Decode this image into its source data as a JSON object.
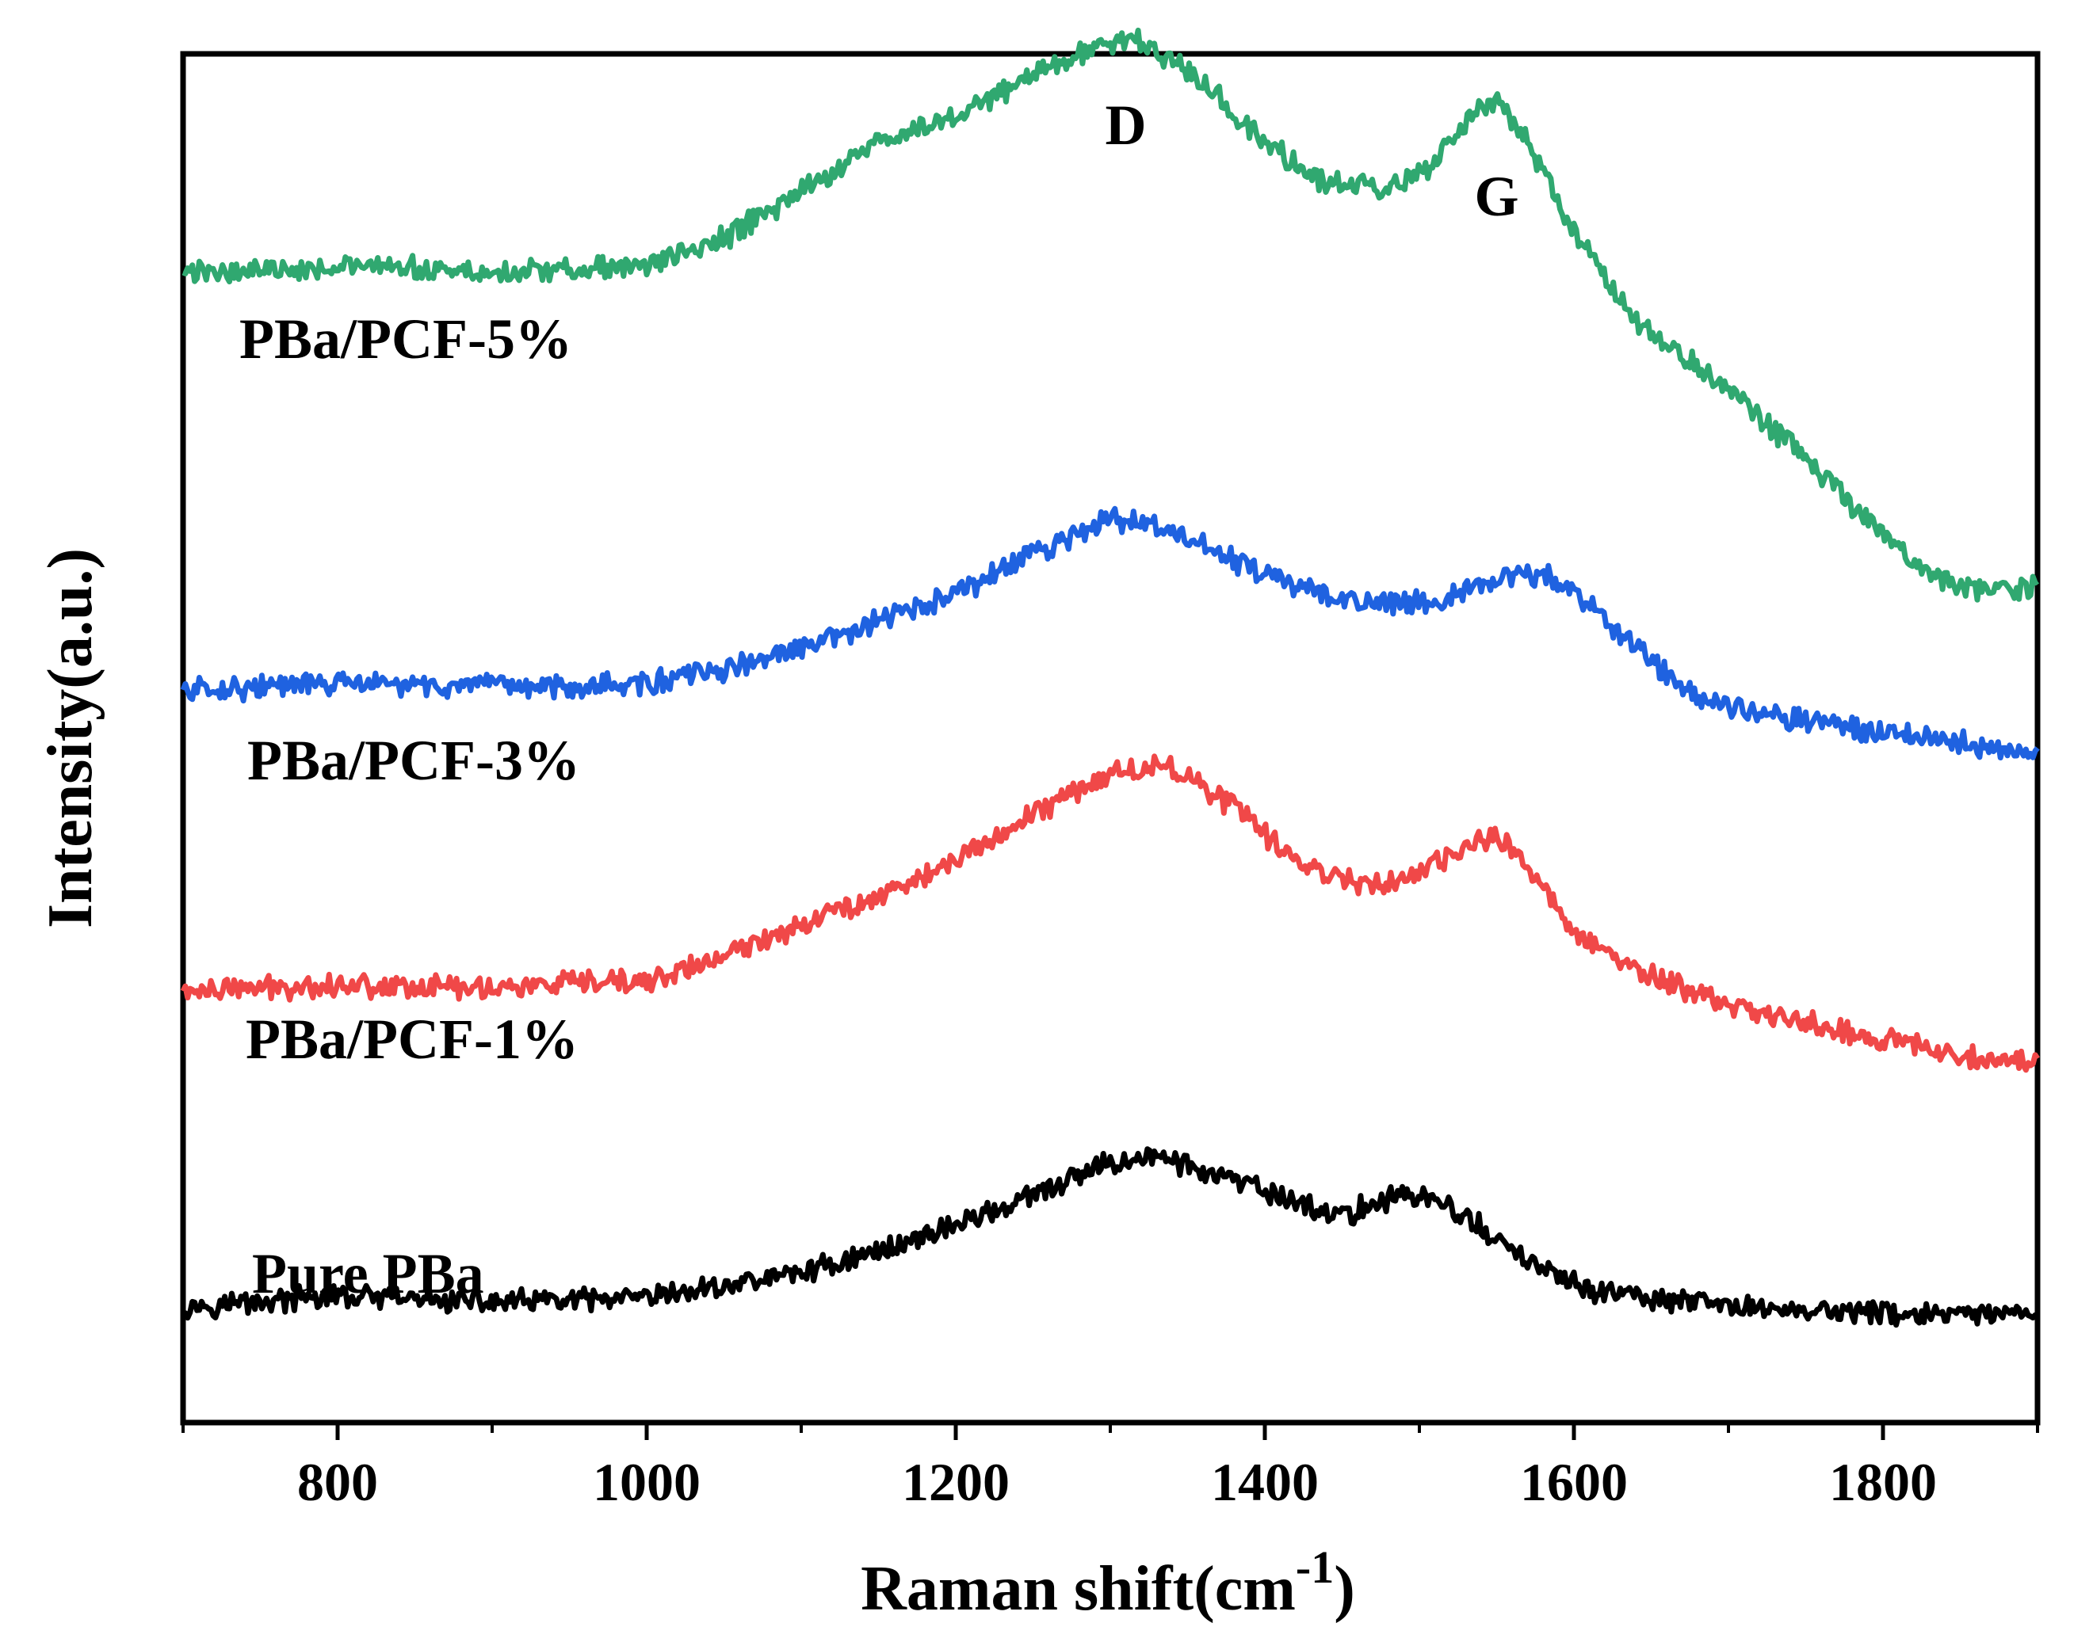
{
  "chart_data": {
    "type": "line",
    "title": "",
    "xlabel": "Raman shift(cm",
    "xlabel_superscript": "-1",
    "xlabel_suffix": ")",
    "ylabel": "Intensity(a.u.)",
    "xlim": [
      700,
      1900
    ],
    "ylim": [
      0,
      1
    ],
    "x_ticks": [
      800,
      1000,
      1200,
      1400,
      1600,
      1800
    ],
    "x_tick_labels": [
      "800",
      "1000",
      "1200",
      "1400",
      "1600",
      "1800"
    ],
    "y_ticks_shown": false,
    "annotations": [
      {
        "text": "D",
        "x": 1310
      },
      {
        "text": "G",
        "x": 1550
      }
    ],
    "series": [
      {
        "name": "Pure PBa",
        "label": "Pure PBa",
        "color": "#000000",
        "x": [
          700,
          800,
          900,
          1000,
          1050,
          1100,
          1150,
          1200,
          1250,
          1300,
          1330,
          1370,
          1410,
          1450,
          1470,
          1490,
          1510,
          1530,
          1560,
          1600,
          1650,
          1700,
          1750,
          1800,
          1850,
          1900
        ],
        "y": [
          0.085,
          0.092,
          0.088,
          0.09,
          0.1,
          0.11,
          0.125,
          0.145,
          0.165,
          0.19,
          0.195,
          0.18,
          0.165,
          0.15,
          0.16,
          0.168,
          0.162,
          0.15,
          0.125,
          0.1,
          0.09,
          0.085,
          0.082,
          0.08,
          0.078,
          0.078
        ]
      },
      {
        "name": "PBa/PCF-1%",
        "label": "PBa/PCF-1%",
        "color": "#f04848",
        "x": [
          700,
          800,
          900,
          1000,
          1050,
          1100,
          1150,
          1200,
          1250,
          1300,
          1340,
          1380,
          1420,
          1460,
          1480,
          1500,
          1530,
          1550,
          1570,
          1600,
          1640,
          1700,
          1760,
          1820,
          1880,
          1900
        ],
        "y": [
          0.315,
          0.32,
          0.318,
          0.322,
          0.34,
          0.365,
          0.385,
          0.41,
          0.445,
          0.475,
          0.48,
          0.45,
          0.41,
          0.395,
          0.395,
          0.4,
          0.42,
          0.43,
          0.405,
          0.36,
          0.33,
          0.305,
          0.29,
          0.275,
          0.265,
          0.265
        ]
      },
      {
        "name": "PBa/PCF-3%",
        "label": "PBa/PCF-3%",
        "color": "#1f62e0",
        "x": [
          700,
          800,
          900,
          1000,
          1050,
          1100,
          1150,
          1200,
          1250,
          1300,
          1330,
          1370,
          1420,
          1460,
          1490,
          1520,
          1550,
          1580,
          1610,
          1640,
          1680,
          1740,
          1800,
          1860,
          1900
        ],
        "y": [
          0.535,
          0.54,
          0.537,
          0.54,
          0.55,
          0.565,
          0.585,
          0.605,
          0.635,
          0.66,
          0.655,
          0.635,
          0.61,
          0.6,
          0.6,
          0.603,
          0.615,
          0.62,
          0.6,
          0.565,
          0.53,
          0.515,
          0.505,
          0.495,
          0.49
        ]
      },
      {
        "name": "PBa/PCF-5%",
        "label": "PBa/PCF-5%",
        "color": "#30a870",
        "x": [
          700,
          800,
          900,
          1000,
          1050,
          1100,
          1150,
          1200,
          1250,
          1300,
          1320,
          1360,
          1400,
          1440,
          1480,
          1510,
          1530,
          1550,
          1570,
          1600,
          1640,
          1700,
          1740,
          1780,
          1820,
          1850,
          1900
        ],
        "y": [
          0.84,
          0.845,
          0.84,
          0.845,
          0.865,
          0.9,
          0.935,
          0.955,
          0.985,
          1.01,
          1.008,
          0.98,
          0.935,
          0.905,
          0.9,
          0.92,
          0.95,
          0.965,
          0.935,
          0.87,
          0.805,
          0.755,
          0.715,
          0.67,
          0.625,
          0.61,
          0.61
        ]
      }
    ]
  }
}
